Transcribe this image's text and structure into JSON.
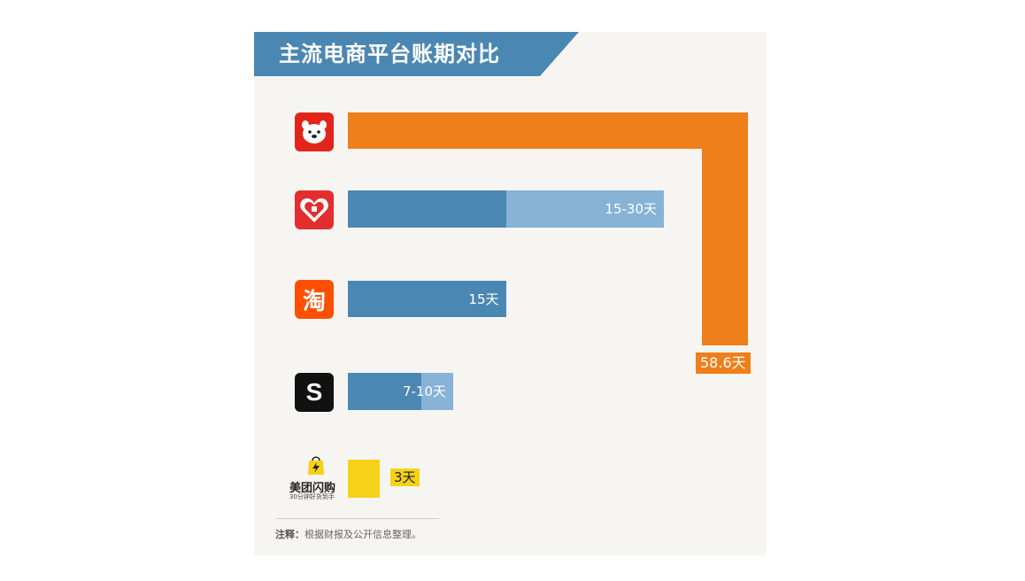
{
  "title": "主流电商平台账期对比",
  "chart_data": {
    "type": "bar",
    "orientation": "horizontal",
    "unit": "天",
    "categories": [
      "京东",
      "拼多多",
      "淘宝",
      "SHEIN",
      "美团闪购"
    ],
    "bars": [
      {
        "platform": "京东",
        "min": 58.6,
        "max": 58.6,
        "label": "58.6天",
        "color": "#ef7f1a"
      },
      {
        "platform": "拼多多",
        "min": 15,
        "max": 30,
        "label": "15-30天",
        "color": "#4b87b3",
        "range_color": "#86b3d6"
      },
      {
        "platform": "淘宝",
        "min": 15,
        "max": 15,
        "label": "15天",
        "color": "#4b87b3"
      },
      {
        "platform": "SHEIN",
        "min": 7,
        "max": 10,
        "label": "7-10天",
        "color": "#4b87b3",
        "range_color": "#86b3d6"
      },
      {
        "platform": "美团闪购",
        "min": 3,
        "max": 3,
        "label": "3天",
        "color": "#f7d117"
      }
    ]
  },
  "logos": {
    "meituan_name": "美团闪购",
    "meituan_slogan": "30分钟好货到手",
    "shein_letter": "S",
    "taobao_char": "淘"
  },
  "note": {
    "prefix": "注释：",
    "text": "根据财报及公开信息整理。"
  },
  "colors": {
    "orange": "#ef7f1a",
    "blue": "#4b87b3",
    "light_blue": "#86b3d6",
    "yellow": "#f7d117",
    "title_bg": "#4b87b3"
  }
}
